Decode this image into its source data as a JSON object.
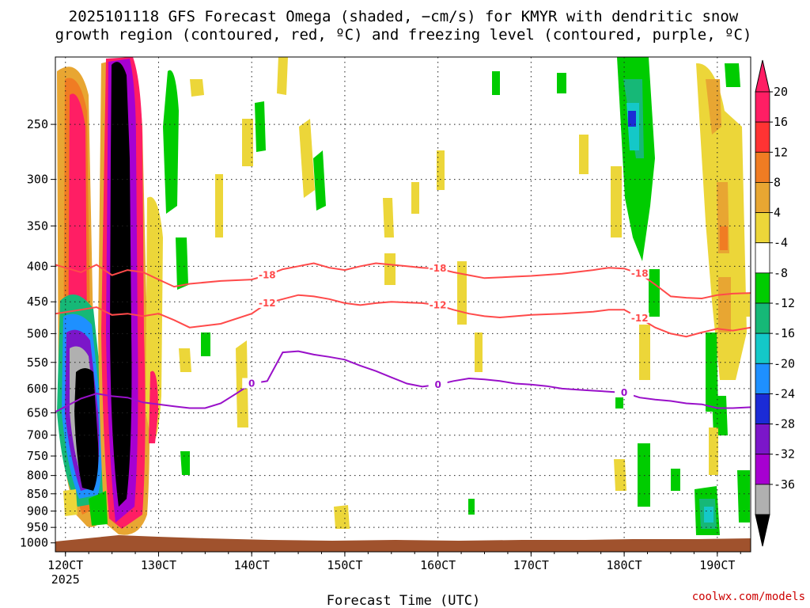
{
  "chart_data": {
    "type": "heatmap",
    "title_line1": "2025101118 GFS Forecast Omega (shaded, −cm/s) for KMYR with dendritic snow",
    "title_line2": "growth region (contoured, red, ºC) and freezing level (contoured, purple, ºC)",
    "xlabel": "Forecast Time (UTC)",
    "credit": "coolwx.com/models",
    "x_ticks": [
      {
        "hour": 0,
        "label": "120CT",
        "sublabel": "2025"
      },
      {
        "hour": 12,
        "label": "130CT",
        "sublabel": ""
      },
      {
        "hour": 24,
        "label": "140CT",
        "sublabel": ""
      },
      {
        "hour": 36,
        "label": "150CT",
        "sublabel": ""
      },
      {
        "hour": 48,
        "label": "160CT",
        "sublabel": ""
      },
      {
        "hour": 60,
        "label": "170CT",
        "sublabel": ""
      },
      {
        "hour": 72,
        "label": "180CT",
        "sublabel": ""
      },
      {
        "hour": 84,
        "label": "190CT",
        "sublabel": ""
      }
    ],
    "x_range_hours": [
      -1.3,
      88.3
    ],
    "y_ticks": [
      "250",
      "300",
      "350",
      "400",
      "450",
      "500",
      "550",
      "600",
      "650",
      "700",
      "750",
      "800",
      "850",
      "900",
      "950",
      "1000"
    ],
    "y_range_hpa": [
      1030,
      200
    ],
    "colorbar": {
      "labels": [
        "20",
        "16",
        "12",
        "8",
        "4",
        "-4",
        "-8",
        "-12",
        "-16",
        "-20",
        "-24",
        "-28",
        "-32",
        "-36"
      ],
      "colors": [
        "#ff1e64",
        "#ff3333",
        "#f07c23",
        "#e8a632",
        "#ecd639",
        "#ffffff",
        "#00cc00",
        "#16b877",
        "#14c8c8",
        "#1e90ff",
        "#1b2bd6",
        "#7b16c9",
        "#a700d1",
        "#b0b0b0"
      ]
    },
    "series": [
      {
        "name": "-18",
        "color": "#ff4a4a",
        "x": [
          -1.3,
          2,
          4,
          6,
          8,
          10,
          12,
          14,
          16,
          20,
          24,
          26,
          28,
          30,
          32,
          34,
          36,
          38,
          40,
          42,
          44,
          46,
          48,
          50,
          52,
          54,
          56,
          58,
          60,
          64,
          68,
          70,
          72,
          74,
          76,
          78,
          80,
          82,
          84,
          86,
          88.3
        ],
        "y": [
          398,
          408,
          398,
          412,
          405,
          408,
          418,
          428,
          424,
          420,
          418,
          412,
          404,
          400,
          396,
          402,
          405,
          400,
          396,
          398,
          400,
          402,
          403,
          408,
          412,
          416,
          415,
          414,
          413,
          410,
          405,
          402,
          403,
          410,
          425,
          442,
          444,
          445,
          440,
          438,
          437
        ]
      },
      {
        "name": "-12",
        "color": "#ff4a4a",
        "x": [
          -1.3,
          2,
          4,
          6,
          8,
          10,
          12,
          14,
          16,
          20,
          24,
          26,
          28,
          30,
          32,
          34,
          36,
          38,
          40,
          42,
          44,
          46,
          48,
          50,
          52,
          54,
          56,
          58,
          60,
          64,
          68,
          70,
          72,
          74,
          76,
          78,
          80,
          82,
          84,
          86,
          88.3
        ],
        "y": [
          468,
          462,
          458,
          470,
          468,
          472,
          468,
          478,
          490,
          484,
          468,
          452,
          446,
          440,
          442,
          446,
          452,
          455,
          452,
          450,
          451,
          452,
          455,
          462,
          468,
          472,
          474,
          472,
          470,
          468,
          465,
          462,
          462,
          475,
          490,
          500,
          505,
          498,
          492,
          495,
          490
        ]
      },
      {
        "name": "0",
        "color": "#9910c9",
        "x": [
          -1.3,
          2,
          4,
          6,
          8,
          10,
          12,
          14,
          16,
          18,
          20,
          22,
          24,
          26,
          28,
          30,
          32,
          34,
          36,
          38,
          40,
          42,
          44,
          46,
          48,
          50,
          52,
          54,
          56,
          58,
          60,
          62,
          64,
          66,
          68,
          70,
          72,
          74,
          76,
          78,
          80,
          82,
          84,
          86,
          88.3
        ],
        "y": [
          648,
          620,
          610,
          615,
          618,
          628,
          632,
          636,
          640,
          640,
          630,
          610,
          590,
          585,
          532,
          530,
          536,
          540,
          545,
          556,
          566,
          578,
          590,
          596,
          592,
          585,
          580,
          582,
          585,
          590,
          592,
          595,
          600,
          602,
          604,
          606,
          608,
          618,
          622,
          625,
          630,
          632,
          640,
          640,
          638
        ]
      }
    ]
  }
}
